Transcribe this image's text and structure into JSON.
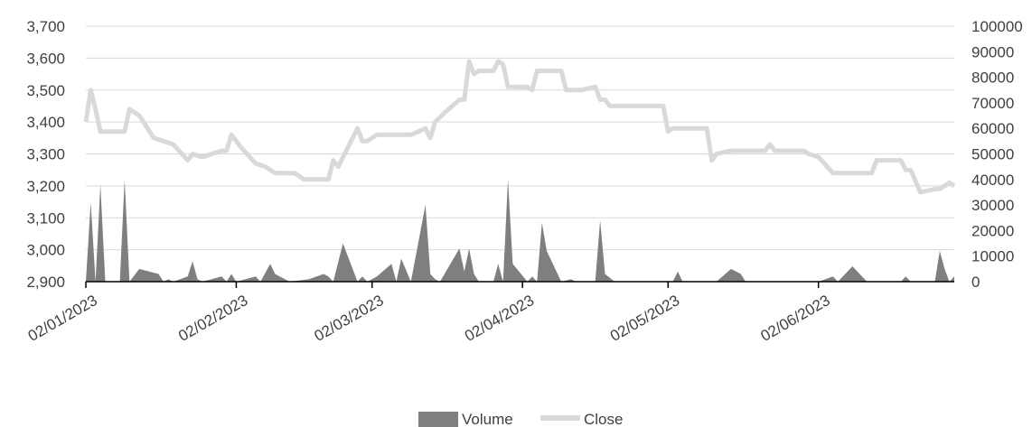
{
  "chart_data": {
    "type": "line",
    "title": "",
    "legend": {
      "placement": "bottom-center"
    },
    "grid": {
      "horizontal": true,
      "vertical": false
    },
    "colors": {
      "Volume": "#7f7f7f",
      "Close": "#d9d9d9",
      "grid": "#d9d9d9",
      "axis": "#000000"
    },
    "y_left": {
      "min": 2900,
      "max": 3700,
      "step": 100,
      "tick_labels": [
        "2,900",
        "3,000",
        "3,100",
        "3,200",
        "3,300",
        "3,400",
        "3,500",
        "3,600",
        "3,700"
      ]
    },
    "y_right": {
      "min": 0,
      "max": 100000,
      "step": 10000,
      "tick_labels": [
        "0",
        "10000",
        "20000",
        "30000",
        "40000",
        "50000",
        "60000",
        "70000",
        "80000",
        "90000",
        "100000"
      ]
    },
    "x_axis": {
      "type": "date",
      "start": "2023-01-02",
      "end": "2023-06-30",
      "tick_dates": [
        "2023-01-02",
        "2023-02-02",
        "2023-03-02",
        "2023-04-02",
        "2023-05-02",
        "2023-06-02"
      ],
      "tick_labels": [
        "02/01/2023",
        "02/02/2023",
        "02/03/2023",
        "02/04/2023",
        "02/05/2023",
        "02/06/2023"
      ]
    },
    "series": [
      {
        "name": "Volume",
        "type": "area",
        "axis": "right",
        "points": [
          [
            "2023-01-02",
            0
          ],
          [
            "2023-01-03",
            31000
          ],
          [
            "2023-01-04",
            0
          ],
          [
            "2023-01-05",
            38000
          ],
          [
            "2023-01-06",
            0
          ],
          [
            "2023-01-09",
            0
          ],
          [
            "2023-01-10",
            40000
          ],
          [
            "2023-01-11",
            0
          ],
          [
            "2023-01-13",
            5000
          ],
          [
            "2023-01-17",
            3000
          ],
          [
            "2023-01-18",
            0
          ],
          [
            "2023-01-19",
            1000
          ],
          [
            "2023-01-20",
            0
          ],
          [
            "2023-01-23",
            2000
          ],
          [
            "2023-01-24",
            8000
          ],
          [
            "2023-01-25",
            1000
          ],
          [
            "2023-01-26",
            0
          ],
          [
            "2023-01-30",
            2000
          ],
          [
            "2023-01-31",
            0
          ],
          [
            "2023-02-01",
            3000
          ],
          [
            "2023-02-02",
            0
          ],
          [
            "2023-02-06",
            2000
          ],
          [
            "2023-02-07",
            0
          ],
          [
            "2023-02-09",
            7000
          ],
          [
            "2023-02-10",
            3000
          ],
          [
            "2023-02-13",
            0
          ],
          [
            "2023-02-17",
            1000
          ],
          [
            "2023-02-20",
            3000
          ],
          [
            "2023-02-21",
            2000
          ],
          [
            "2023-02-22",
            0
          ],
          [
            "2023-02-24",
            15000
          ],
          [
            "2023-02-27",
            0
          ],
          [
            "2023-02-28",
            2000
          ],
          [
            "2023-03-01",
            0
          ],
          [
            "2023-03-03",
            2000
          ],
          [
            "2023-03-06",
            7000
          ],
          [
            "2023-03-07",
            0
          ],
          [
            "2023-03-08",
            9000
          ],
          [
            "2023-03-10",
            0
          ],
          [
            "2023-03-13",
            30000
          ],
          [
            "2023-03-14",
            3000
          ],
          [
            "2023-03-15",
            1000
          ],
          [
            "2023-03-16",
            0
          ],
          [
            "2023-03-20",
            13000
          ],
          [
            "2023-03-21",
            4000
          ],
          [
            "2023-03-22",
            13000
          ],
          [
            "2023-03-23",
            3000
          ],
          [
            "2023-03-24",
            0
          ],
          [
            "2023-03-27",
            0
          ],
          [
            "2023-03-28",
            7000
          ],
          [
            "2023-03-29",
            0
          ],
          [
            "2023-03-30",
            40000
          ],
          [
            "2023-03-31",
            7000
          ],
          [
            "2023-04-03",
            0
          ],
          [
            "2023-04-04",
            2000
          ],
          [
            "2023-04-05",
            0
          ],
          [
            "2023-04-06",
            23000
          ],
          [
            "2023-04-07",
            12000
          ],
          [
            "2023-04-10",
            0
          ],
          [
            "2023-04-12",
            1000
          ],
          [
            "2023-04-13",
            0
          ],
          [
            "2023-04-17",
            0
          ],
          [
            "2023-04-18",
            24000
          ],
          [
            "2023-04-19",
            3000
          ],
          [
            "2023-04-21",
            0
          ],
          [
            "2023-04-25",
            0
          ],
          [
            "2023-05-03",
            0
          ],
          [
            "2023-05-04",
            4000
          ],
          [
            "2023-05-05",
            0
          ],
          [
            "2023-05-12",
            0
          ],
          [
            "2023-05-15",
            5000
          ],
          [
            "2023-05-17",
            3000
          ],
          [
            "2023-05-18",
            0
          ],
          [
            "2023-06-02",
            0
          ],
          [
            "2023-06-05",
            2000
          ],
          [
            "2023-06-06",
            0
          ],
          [
            "2023-06-09",
            6000
          ],
          [
            "2023-06-12",
            0
          ],
          [
            "2023-06-19",
            0
          ],
          [
            "2023-06-20",
            2000
          ],
          [
            "2023-06-21",
            0
          ],
          [
            "2023-06-26",
            0
          ],
          [
            "2023-06-27",
            12000
          ],
          [
            "2023-06-28",
            5000
          ],
          [
            "2023-06-29",
            0
          ],
          [
            "2023-06-30",
            2000
          ]
        ]
      },
      {
        "name": "Close",
        "type": "line",
        "axis": "left",
        "points": [
          [
            "2023-01-02",
            3400
          ],
          [
            "2023-01-03",
            3500
          ],
          [
            "2023-01-04",
            3440
          ],
          [
            "2023-01-05",
            3370
          ],
          [
            "2023-01-06",
            3370
          ],
          [
            "2023-01-09",
            3370
          ],
          [
            "2023-01-10",
            3370
          ],
          [
            "2023-01-11",
            3440
          ],
          [
            "2023-01-13",
            3420
          ],
          [
            "2023-01-16",
            3350
          ],
          [
            "2023-01-20",
            3330
          ],
          [
            "2023-01-23",
            3280
          ],
          [
            "2023-01-24",
            3300
          ],
          [
            "2023-01-26",
            3290
          ],
          [
            "2023-01-30",
            3310
          ],
          [
            "2023-01-31",
            3310
          ],
          [
            "2023-02-01",
            3360
          ],
          [
            "2023-02-03",
            3320
          ],
          [
            "2023-02-06",
            3270
          ],
          [
            "2023-02-08",
            3260
          ],
          [
            "2023-02-10",
            3240
          ],
          [
            "2023-02-14",
            3240
          ],
          [
            "2023-02-16",
            3220
          ],
          [
            "2023-02-20",
            3220
          ],
          [
            "2023-02-21",
            3220
          ],
          [
            "2023-02-22",
            3280
          ],
          [
            "2023-02-23",
            3260
          ],
          [
            "2023-02-27",
            3380
          ],
          [
            "2023-02-28",
            3340
          ],
          [
            "2023-03-01",
            3340
          ],
          [
            "2023-03-03",
            3360
          ],
          [
            "2023-03-06",
            3360
          ],
          [
            "2023-03-10",
            3360
          ],
          [
            "2023-03-13",
            3380
          ],
          [
            "2023-03-14",
            3350
          ],
          [
            "2023-03-15",
            3400
          ],
          [
            "2023-03-17",
            3430
          ],
          [
            "2023-03-20",
            3470
          ],
          [
            "2023-03-21",
            3470
          ],
          [
            "2023-03-22",
            3590
          ],
          [
            "2023-03-23",
            3550
          ],
          [
            "2023-03-24",
            3560
          ],
          [
            "2023-03-27",
            3560
          ],
          [
            "2023-03-28",
            3590
          ],
          [
            "2023-03-29",
            3580
          ],
          [
            "2023-03-30",
            3510
          ],
          [
            "2023-04-03",
            3510
          ],
          [
            "2023-04-04",
            3500
          ],
          [
            "2023-04-05",
            3560
          ],
          [
            "2023-04-07",
            3560
          ],
          [
            "2023-04-10",
            3560
          ],
          [
            "2023-04-11",
            3500
          ],
          [
            "2023-04-12",
            3500
          ],
          [
            "2023-04-14",
            3500
          ],
          [
            "2023-04-17",
            3510
          ],
          [
            "2023-04-18",
            3470
          ],
          [
            "2023-04-19",
            3470
          ],
          [
            "2023-04-20",
            3450
          ],
          [
            "2023-04-21",
            3450
          ],
          [
            "2023-04-25",
            3450
          ],
          [
            "2023-05-01",
            3450
          ],
          [
            "2023-05-02",
            3370
          ],
          [
            "2023-05-03",
            3380
          ],
          [
            "2023-05-04",
            3380
          ],
          [
            "2023-05-10",
            3380
          ],
          [
            "2023-05-11",
            3280
          ],
          [
            "2023-05-12",
            3300
          ],
          [
            "2023-05-15",
            3310
          ],
          [
            "2023-05-18",
            3310
          ],
          [
            "2023-05-22",
            3310
          ],
          [
            "2023-05-23",
            3330
          ],
          [
            "2023-05-24",
            3310
          ],
          [
            "2023-05-26",
            3310
          ],
          [
            "2023-05-30",
            3310
          ],
          [
            "2023-05-31",
            3300
          ],
          [
            "2023-06-02",
            3290
          ],
          [
            "2023-06-05",
            3240
          ],
          [
            "2023-06-06",
            3240
          ],
          [
            "2023-06-12",
            3240
          ],
          [
            "2023-06-13",
            3240
          ],
          [
            "2023-06-14",
            3280
          ],
          [
            "2023-06-19",
            3280
          ],
          [
            "2023-06-20",
            3250
          ],
          [
            "2023-06-21",
            3250
          ],
          [
            "2023-06-23",
            3180
          ],
          [
            "2023-06-26",
            3190
          ],
          [
            "2023-06-27",
            3190
          ],
          [
            "2023-06-28",
            3200
          ],
          [
            "2023-06-29",
            3210
          ],
          [
            "2023-06-30",
            3200
          ]
        ]
      }
    ]
  }
}
